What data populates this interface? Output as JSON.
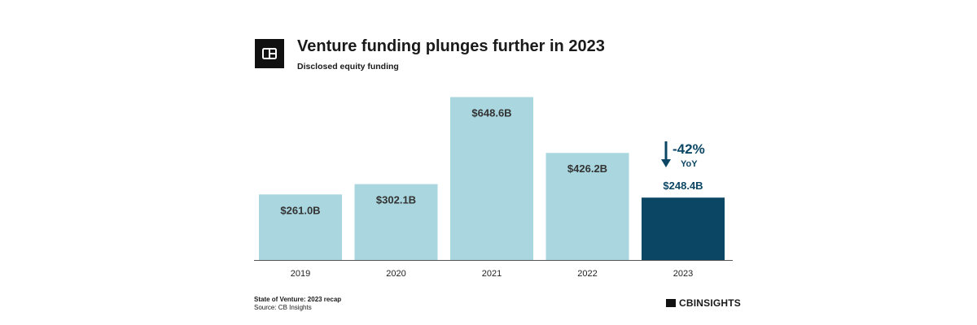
{
  "header": {
    "title": "Venture funding plunges further in 2023",
    "subtitle": "Disclosed equity funding"
  },
  "footer": {
    "report": "State of Venture: 2023 recap",
    "source": "Source: CB Insights",
    "brand": "CBINSIGHTS"
  },
  "colors": {
    "bar": "#a9d6df",
    "highlight": "#0b4764",
    "text": "#333333",
    "axis": "#555555"
  },
  "chart_data": {
    "type": "bar",
    "title": "Venture funding plunges further in 2023",
    "subtitle": "Disclosed equity funding",
    "xlabel": "",
    "ylabel": "",
    "categories": [
      "2019",
      "2020",
      "2021",
      "2022",
      "2023"
    ],
    "values": [
      261.0,
      302.1,
      648.6,
      426.2,
      248.4
    ],
    "labels": [
      "$261.0B",
      "$302.1B",
      "$648.6B",
      "$426.2B",
      "$248.4B"
    ],
    "highlight_index": 4,
    "ylim": [
      0,
      700
    ],
    "grid": false,
    "annotation": {
      "change": "-42%",
      "basis": "YoY"
    }
  }
}
